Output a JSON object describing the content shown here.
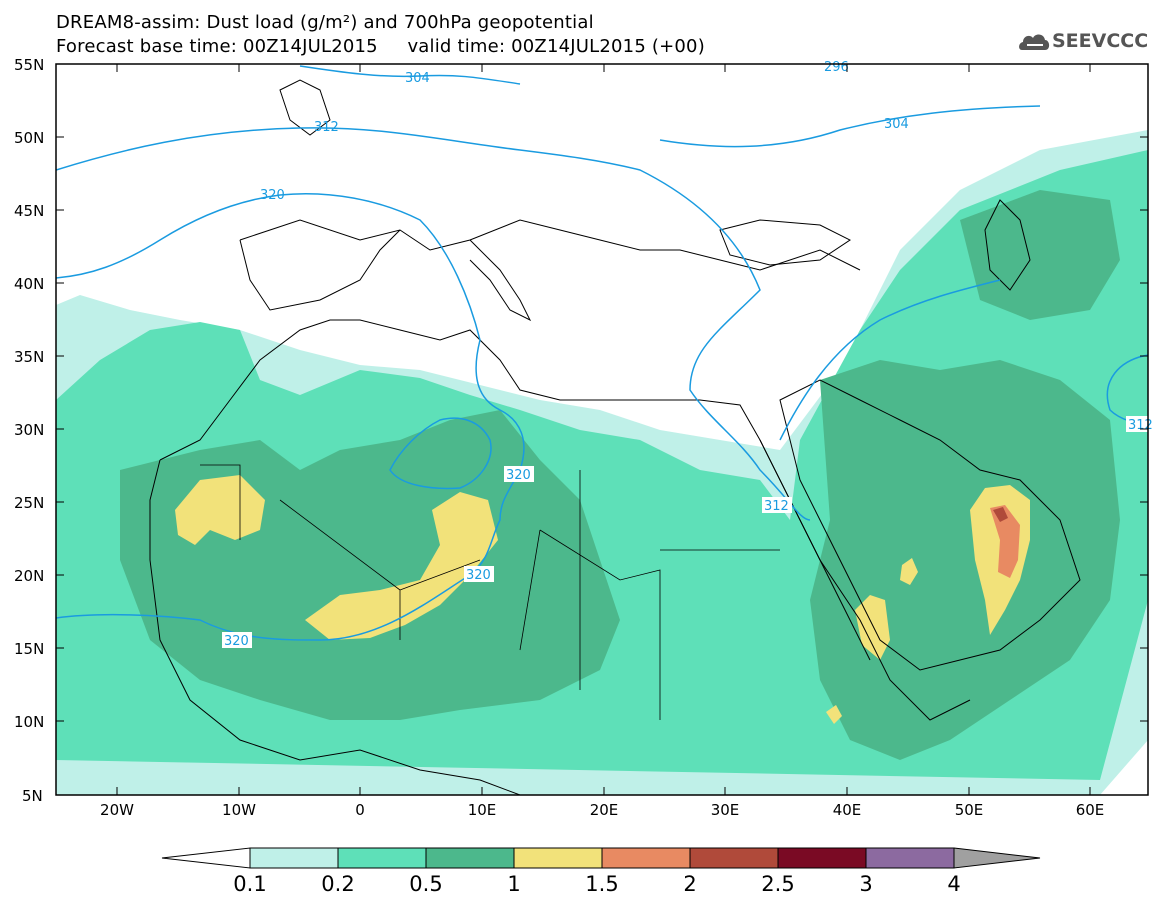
{
  "header": {
    "title_line1": "DREAM8-assim: Dust load (g/m²) and 700hPa geopotential",
    "title_line2": "Forecast base time: 00Z14JUL2015     valid time: 00Z14JUL2015 (+00)",
    "logo_text": "SEEVCCC",
    "logo_icon": "cloud-icon"
  },
  "map": {
    "lat_labels": [
      "55N",
      "50N",
      "45N",
      "40N",
      "35N",
      "30N",
      "25N",
      "20N",
      "15N",
      "10N",
      "5N"
    ],
    "lon_labels": [
      "20W",
      "10W",
      "0",
      "10E",
      "20E",
      "30E",
      "40E",
      "50E",
      "60E"
    ],
    "contours": [
      {
        "label": "304"
      },
      {
        "label": "304"
      },
      {
        "label": "296"
      },
      {
        "label": "312"
      },
      {
        "label": "320"
      },
      {
        "label": "320"
      },
      {
        "label": "320"
      },
      {
        "label": "320"
      },
      {
        "label": "312"
      },
      {
        "label": "312"
      }
    ],
    "contour_color": "#1a9be0"
  },
  "colorbar": {
    "labels": [
      "0.1",
      "0.2",
      "0.5",
      "1",
      "1.5",
      "2",
      "2.5",
      "3",
      "4"
    ],
    "colors": [
      "#ffffff",
      "#bff0e8",
      "#5ee0b8",
      "#4cb88c",
      "#f2e27a",
      "#e88a62",
      "#b04a3a",
      "#7a0a24",
      "#8c6aa0",
      "#a0a0a0"
    ]
  }
}
